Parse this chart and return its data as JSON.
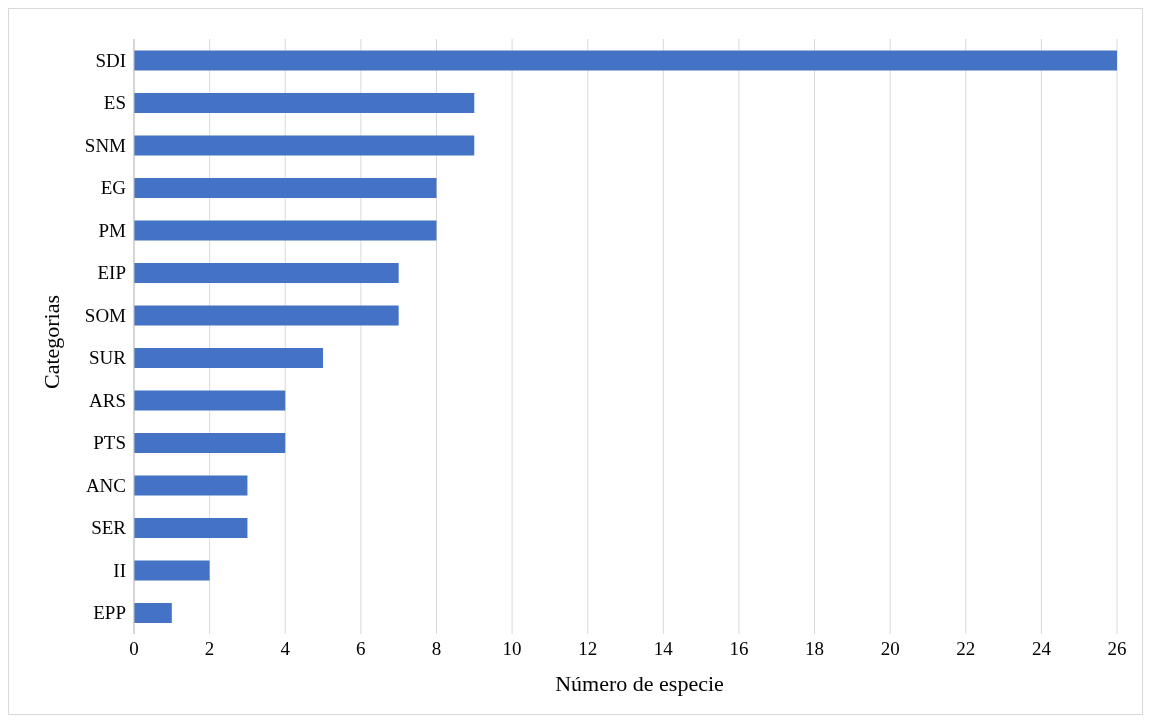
{
  "chart_data": {
    "type": "bar",
    "orientation": "horizontal",
    "xlabel": "Número de especie",
    "ylabel": "Categorias",
    "categories": [
      "SDI",
      "ES",
      "SNM",
      "EG",
      "PM",
      "EIP",
      "SOM",
      "SUR",
      "ARS",
      "PTS",
      "ANC",
      "SER",
      "II",
      "EPP"
    ],
    "values": [
      26,
      9,
      9,
      8,
      8,
      7,
      7,
      5,
      4,
      4,
      3,
      3,
      2,
      1
    ],
    "color": "#4472c4",
    "xlim": [
      0,
      26
    ],
    "xticks": [
      0,
      2,
      4,
      6,
      8,
      10,
      12,
      14,
      16,
      18,
      20,
      22,
      24,
      26
    ],
    "grid": "x",
    "legend": false
  }
}
